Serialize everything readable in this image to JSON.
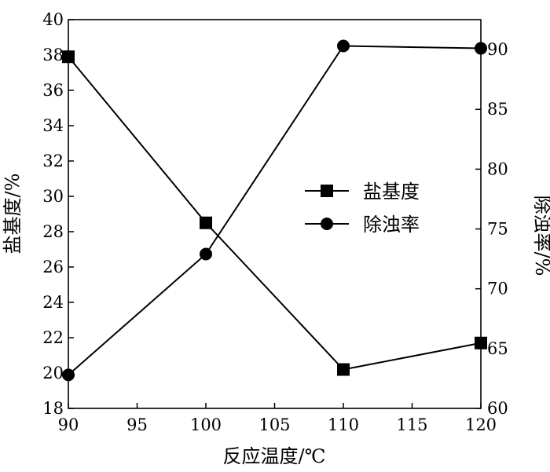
{
  "chart_data": {
    "type": "line",
    "x": [
      90,
      100,
      110,
      120
    ],
    "xlabel": "反应温度/℃",
    "xlim": [
      90,
      120
    ],
    "xticks": [
      90,
      95,
      100,
      105,
      110,
      115,
      120
    ],
    "y_left": {
      "label": "盐基度/%",
      "lim": [
        18,
        40
      ],
      "ticks": [
        18,
        20,
        22,
        24,
        26,
        28,
        30,
        32,
        34,
        36,
        38,
        40
      ]
    },
    "y_right": {
      "label": "除浊率/%",
      "lim": [
        60,
        92.5
      ],
      "ticks": [
        60,
        65,
        70,
        75,
        80,
        85,
        90
      ]
    },
    "series": [
      {
        "name": "盐基度",
        "axis": "left",
        "marker": "square",
        "values": [
          37.9,
          28.5,
          20.2,
          21.7
        ]
      },
      {
        "name": "除浊率",
        "axis": "right",
        "marker": "circle",
        "values": [
          62.8,
          72.9,
          90.3,
          90.1
        ]
      }
    ],
    "grid": false,
    "legend_position": "center-right"
  }
}
